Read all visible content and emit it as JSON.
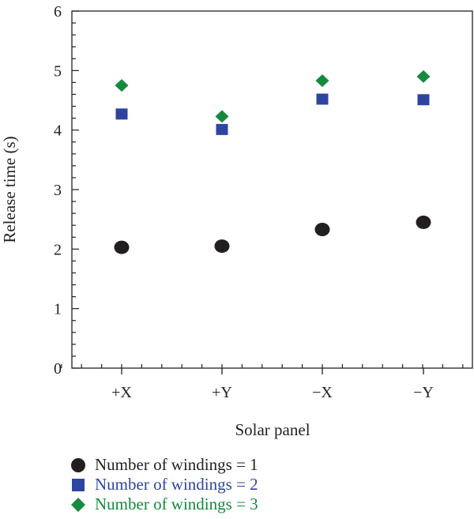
{
  "chart_data": {
    "type": "scatter",
    "categories": [
      "+X",
      "+Y",
      "−X",
      "−Y"
    ],
    "xlabel": "Solar panel",
    "ylabel": "Release time (s)",
    "ylim": [
      0,
      6
    ],
    "yticks": [
      0,
      1,
      2,
      3,
      4,
      5,
      6
    ],
    "grid": false,
    "legend_position": "bottom",
    "series": [
      {
        "name": "Number of windings = 1",
        "marker": "circle",
        "color": "#231f20",
        "values": [
          2.03,
          2.05,
          2.33,
          2.45
        ]
      },
      {
        "name": "Number of windings = 2",
        "marker": "square",
        "color": "#2e45a0",
        "values": [
          4.27,
          4.01,
          4.52,
          4.51
        ]
      },
      {
        "name": "Number of windings = 3",
        "marker": "diamond",
        "color": "#138a3e",
        "values": [
          4.75,
          4.23,
          4.83,
          4.9
        ]
      }
    ]
  }
}
